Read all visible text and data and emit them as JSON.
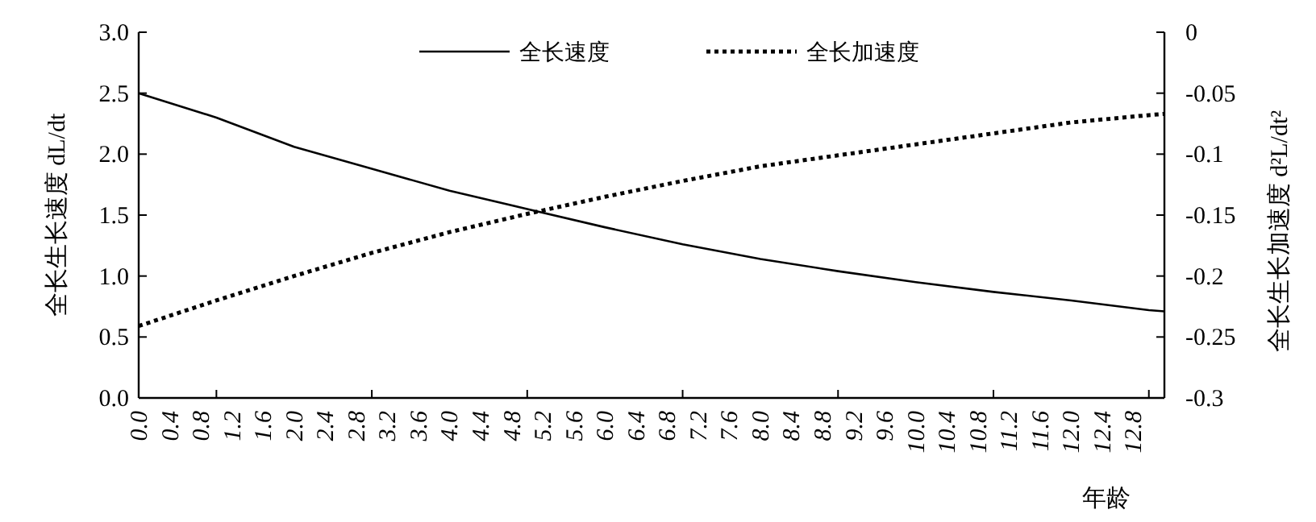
{
  "chart_data": {
    "type": "line",
    "xlabel": "年龄",
    "ylabel": "全长生长速度 dL/dt",
    "y2label": "全长生长加速度 d²L/dt²",
    "xlim": [
      0,
      13.2
    ],
    "xticks": [
      {
        "value": 0,
        "label": "0.0"
      },
      {
        "value": 0.4,
        "label": "0.4"
      },
      {
        "value": 0.8,
        "label": "0.8"
      },
      {
        "value": 1.2,
        "label": "1.2"
      },
      {
        "value": 1.6,
        "label": "1.6"
      },
      {
        "value": 2,
        "label": "2.0"
      },
      {
        "value": 2.4,
        "label": "2.4"
      },
      {
        "value": 2.8,
        "label": "2.8"
      },
      {
        "value": 3.2,
        "label": "3.2"
      },
      {
        "value": 3.6,
        "label": "3.6"
      },
      {
        "value": 4,
        "label": "4.0"
      },
      {
        "value": 4.4,
        "label": "4.4"
      },
      {
        "value": 4.8,
        "label": "4.8"
      },
      {
        "value": 5.2,
        "label": "5.2"
      },
      {
        "value": 5.6,
        "label": "5.6"
      },
      {
        "value": 6,
        "label": "6.0"
      },
      {
        "value": 6.4,
        "label": "6.4"
      },
      {
        "value": 6.8,
        "label": "6.8"
      },
      {
        "value": 7.2,
        "label": "7.2"
      },
      {
        "value": 7.6,
        "label": "7.6"
      },
      {
        "value": 8,
        "label": "8.0"
      },
      {
        "value": 8.4,
        "label": "8.4"
      },
      {
        "value": 8.8,
        "label": "8.8"
      },
      {
        "value": 9.2,
        "label": "9.2"
      },
      {
        "value": 9.6,
        "label": "9.6"
      },
      {
        "value": 10,
        "label": "10.0"
      },
      {
        "value": 10.4,
        "label": "10.4"
      },
      {
        "value": 10.8,
        "label": "10.8"
      },
      {
        "value": 11.2,
        "label": "11.2"
      },
      {
        "value": 11.6,
        "label": "11.6"
      },
      {
        "value": 12,
        "label": "12.0"
      },
      {
        "value": 12.4,
        "label": "12.4"
      },
      {
        "value": 12.8,
        "label": "12.8"
      },
      {
        "value": 1,
        "label": null
      },
      {
        "value": 3,
        "label": null
      },
      {
        "value": 5,
        "label": null
      },
      {
        "value": 7,
        "label": null
      },
      {
        "value": 9,
        "label": null
      },
      {
        "value": 11,
        "label": null
      },
      {
        "value": 13,
        "label": null
      }
    ],
    "ylim": [
      0,
      3
    ],
    "yticks": [
      {
        "value": 0,
        "label": "0.0"
      },
      {
        "value": 0.5,
        "label": "0.5"
      },
      {
        "value": 1,
        "label": "1.0"
      },
      {
        "value": 1.5,
        "label": "1.5"
      },
      {
        "value": 2,
        "label": "2.0"
      },
      {
        "value": 2.5,
        "label": "2.5"
      },
      {
        "value": 3,
        "label": "3.0"
      }
    ],
    "y2lim": [
      -0.3,
      0
    ],
    "y2ticks": [
      -0.3,
      -0.25,
      -0.2,
      -0.15,
      -0.1,
      -0.05,
      0
    ],
    "grid": false,
    "legend": "top",
    "marker": "none",
    "series": [
      {
        "name": "全长速度",
        "color": "#000000",
        "line_style": "solid",
        "x": [
          0,
          1,
          2,
          3,
          4,
          5,
          6,
          7,
          8,
          9,
          10,
          11,
          12,
          13,
          13.2
        ],
        "values": [
          2.5,
          2.3,
          2.06,
          1.88,
          1.7,
          1.55,
          1.4,
          1.26,
          1.14,
          1.04,
          0.95,
          0.87,
          0.8,
          0.72,
          0.71
        ]
      },
      {
        "name": "全长加速度",
        "color": "#000000",
        "line_style": "dotted",
        "axis": "y2",
        "x": [
          0,
          1,
          2,
          3,
          4,
          5,
          6,
          7,
          8,
          9,
          10,
          11,
          12,
          13,
          13.2
        ],
        "values": [
          -0.241,
          -0.22,
          -0.2,
          -0.181,
          -0.164,
          -0.149,
          -0.135,
          -0.122,
          -0.11,
          -0.101,
          -0.092,
          -0.083,
          -0.074,
          -0.068,
          -0.067
        ]
      }
    ]
  }
}
